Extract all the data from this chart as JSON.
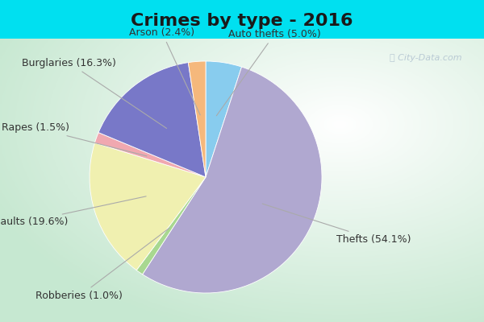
{
  "title": "Crimes by type - 2016",
  "labels": [
    "Thefts",
    "Assaults",
    "Burglaries",
    "Auto thefts",
    "Arson",
    "Rapes",
    "Robberies"
  ],
  "values": [
    54.1,
    19.6,
    16.3,
    5.0,
    2.4,
    1.5,
    1.0
  ],
  "colors": [
    "#b0a8d0",
    "#f0f0b0",
    "#7878c8",
    "#88ccee",
    "#f5b87c",
    "#f0a8b0",
    "#a8d890"
  ],
  "background_top": "#00e0f0",
  "title_fontsize": 16,
  "label_fontsize": 9,
  "watermark": "City-Data.com"
}
